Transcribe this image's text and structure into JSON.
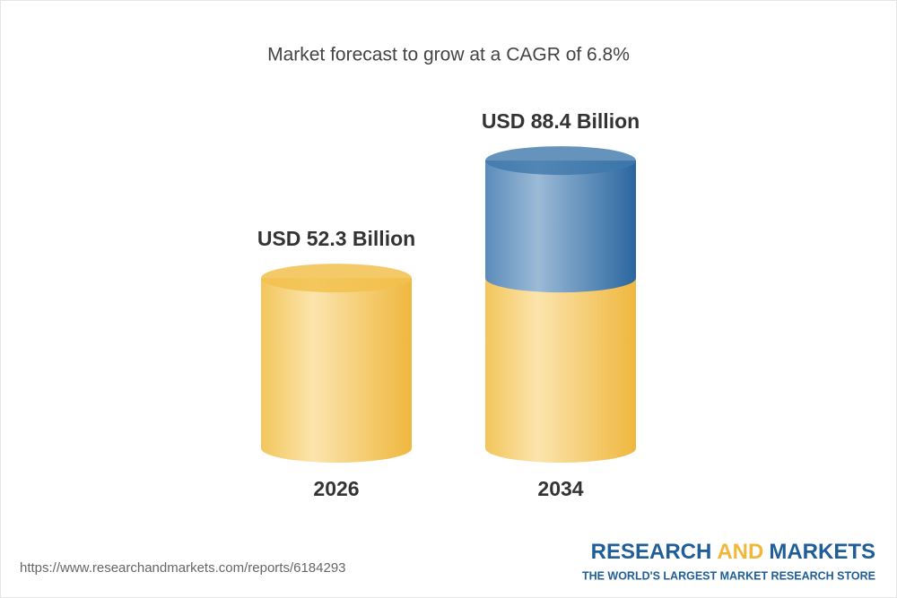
{
  "chart_data": {
    "type": "cylinder-bar",
    "title": "Market forecast to grow at a CAGR of 6.8%",
    "categories": [
      "2026",
      "2034"
    ],
    "values": [
      52.3,
      88.4
    ],
    "value_labels": [
      "USD 52.3 Billion",
      "USD 88.4 Billion"
    ],
    "color": "#f2c14e",
    "highlight_color": "#3f78ab"
  },
  "source": "https://www.researchandmarkets.com/reports/6184293",
  "logo": {
    "word1": "RESEARCH",
    "word2": "AND",
    "word3": "MARKETS",
    "tagline": "THE WORLD'S LARGEST MARKET RESEARCH STORE"
  }
}
